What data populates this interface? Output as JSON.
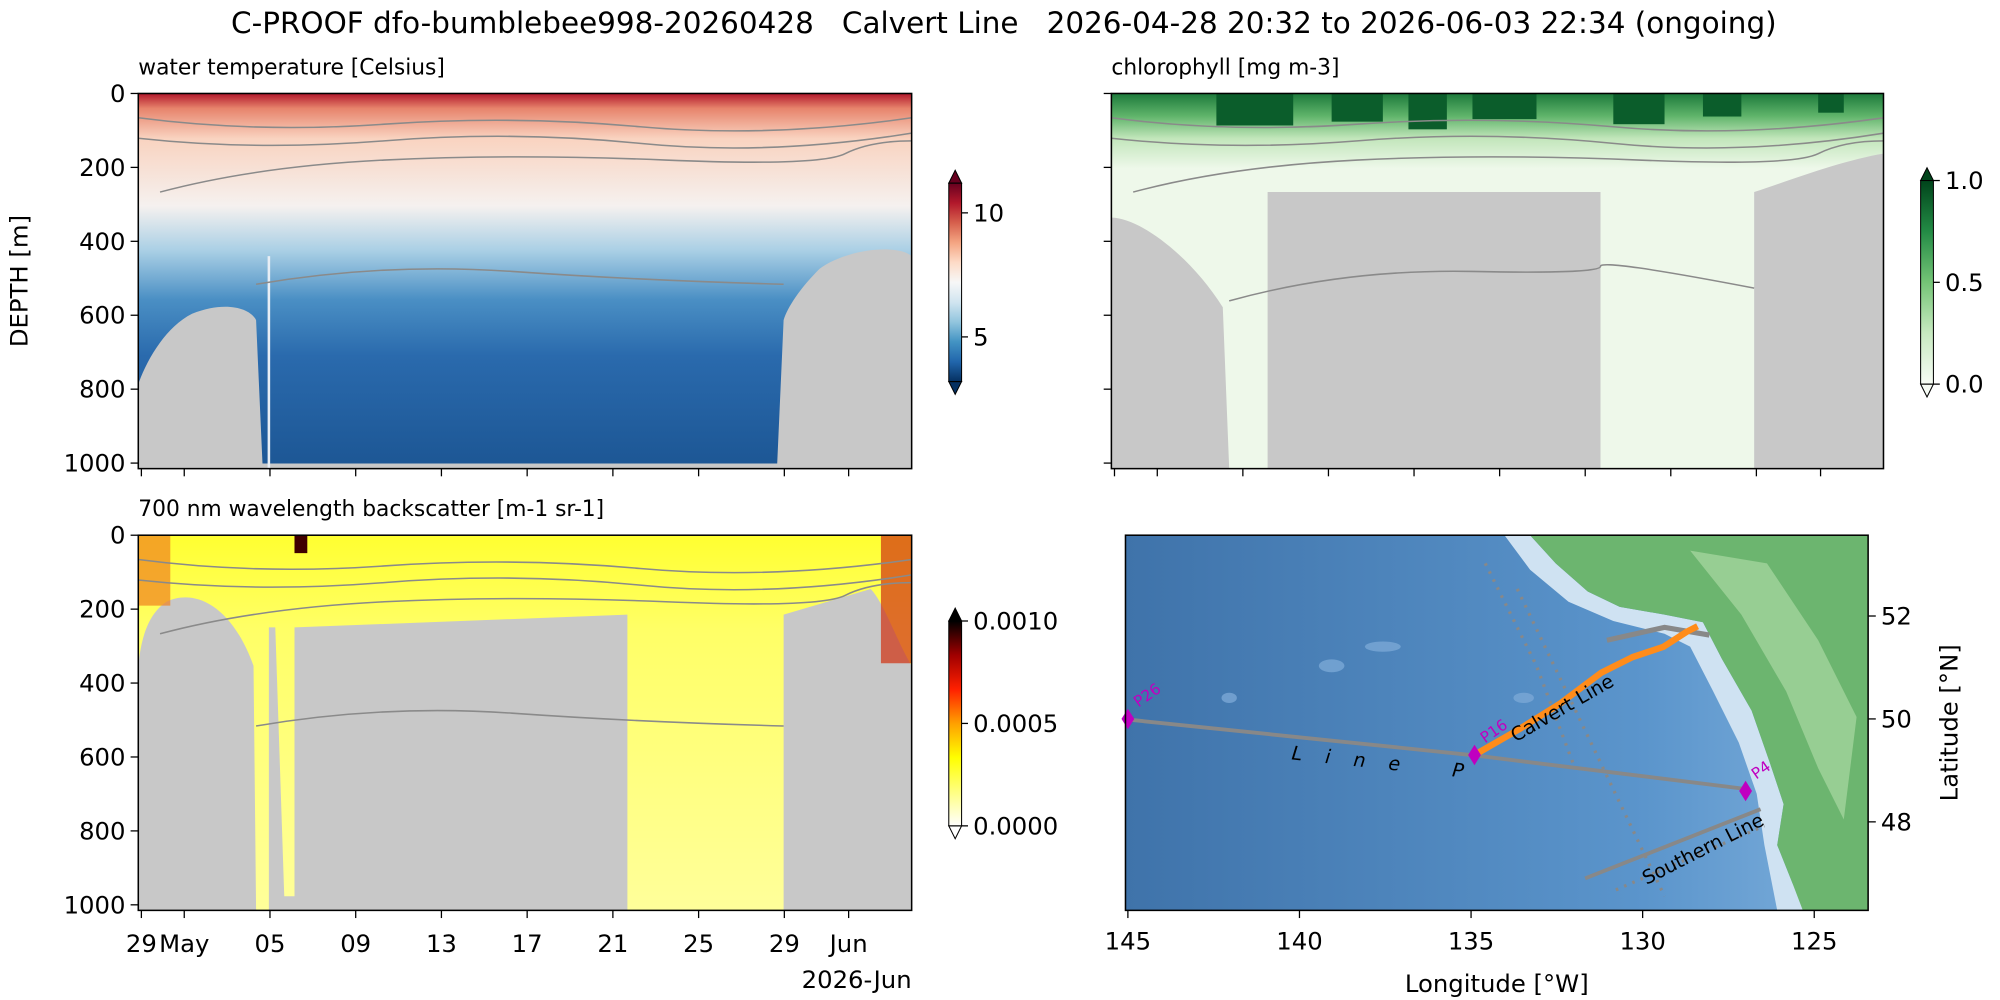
{
  "title": "C-PROOF dfo-bumblebee998-20260428   Calvert Line   2026-04-28 20:32 to 2026-06-03 22:34 (ongoing)",
  "chart_data": [
    {
      "type": "heatmap",
      "title": "water temperature [Celsius]",
      "ylabel": "DEPTH [m]",
      "ylim": [
        0,
        1015
      ],
      "y_inverted": true,
      "yticks": [
        0,
        200,
        400,
        600,
        800,
        1000
      ],
      "show_yticklabels": true,
      "xlim": [
        "2026-04-28T20:32",
        "2026-06-03T22:34"
      ],
      "xticks": [
        "2026-04-29T00:00",
        "2026-05-01T00:00",
        "2026-05-05T00:00",
        "2026-05-09T00:00",
        "2026-05-13T00:00",
        "2026-05-17T00:00",
        "2026-05-21T00:00",
        "2026-05-25T00:00",
        "2026-05-29T00:00",
        "2026-06-01T00:00"
      ],
      "show_xticklabels": false,
      "colorbar": {
        "lim": [
          3.2,
          11.2
        ],
        "ticks": [
          5,
          10
        ],
        "extend": "both",
        "cmap": [
          "#053061",
          "#2166ac",
          "#4393c3",
          "#92c5de",
          "#d1e5f0",
          "#f7f7f7",
          "#fddbc7",
          "#f4a582",
          "#d6604d",
          "#b2182b",
          "#67001f"
        ]
      }
    },
    {
      "type": "heatmap",
      "title": "chlorophyll [mg m-3]",
      "ylim": [
        0,
        1015
      ],
      "y_inverted": true,
      "yticks": [
        0,
        200,
        400,
        600,
        800,
        1000
      ],
      "show_yticklabels": false,
      "xlim": [
        "2026-04-28T20:32",
        "2026-06-03T22:34"
      ],
      "xticks": [
        "2026-04-29T00:00",
        "2026-05-01T00:00",
        "2026-05-05T00:00",
        "2026-05-09T00:00",
        "2026-05-13T00:00",
        "2026-05-17T00:00",
        "2026-05-21T00:00",
        "2026-05-25T00:00",
        "2026-05-29T00:00",
        "2026-06-01T00:00"
      ],
      "show_xticklabels": false,
      "colorbar": {
        "lim": [
          0,
          1
        ],
        "ticks": [
          {
            "value": 0,
            "label": "0.0"
          },
          {
            "value": 0.5,
            "label": "0.5"
          },
          {
            "value": 1,
            "label": "1.0"
          }
        ],
        "extend": "both",
        "cmap": [
          "#f7fcf5",
          "#c7e9c0",
          "#74c476",
          "#238b45",
          "#00441b"
        ]
      }
    },
    {
      "type": "heatmap",
      "title": "700 nm wavelength backscatter [m-1 sr-1]",
      "ylim": [
        0,
        1015
      ],
      "y_inverted": true,
      "yticks": [
        0,
        200,
        400,
        600,
        800,
        1000
      ],
      "show_yticklabels": true,
      "xlim": [
        "2026-04-28T20:32",
        "2026-06-03T22:34"
      ],
      "xticks": [
        {
          "value": "2026-04-29T00:00",
          "label": "29"
        },
        {
          "value": "2026-05-01T00:00",
          "label": "May"
        },
        {
          "value": "2026-05-05T00:00",
          "label": "05"
        },
        {
          "value": "2026-05-09T00:00",
          "label": "09"
        },
        {
          "value": "2026-05-13T00:00",
          "label": "13"
        },
        {
          "value": "2026-05-17T00:00",
          "label": "17"
        },
        {
          "value": "2026-05-21T00:00",
          "label": "21"
        },
        {
          "value": "2026-05-25T00:00",
          "label": "25"
        },
        {
          "value": "2026-05-29T00:00",
          "label": "29"
        },
        {
          "value": "2026-06-01T00:00",
          "label": "Jun"
        }
      ],
      "show_xticklabels": true,
      "x_offset_label": "2026-Jun",
      "colorbar": {
        "lim": [
          0,
          0.001
        ],
        "ticks": [
          {
            "value": 0,
            "label": "0.0000"
          },
          {
            "value": 0.0005,
            "label": "0.0005"
          },
          {
            "value": 0.001,
            "label": "0.0010"
          }
        ],
        "extend": "both",
        "cmap": [
          "#ffffff",
          "#ffff80",
          "#ffff00",
          "#ffa000",
          "#ff2000",
          "#a00000",
          "#000000"
        ]
      }
    },
    {
      "type": "map",
      "xlabel": "Longitude [°W]",
      "ylabel": "Latitude [°N]",
      "xlim": [
        -145.07,
        -123.43
      ],
      "ylim": [
        46.28,
        53.57
      ],
      "xticks": [
        {
          "value": -145,
          "label": "145"
        },
        {
          "value": -140,
          "label": "140"
        },
        {
          "value": -135,
          "label": "135"
        },
        {
          "value": -130,
          "label": "130"
        },
        {
          "value": -125,
          "label": "125"
        }
      ],
      "yticks": [
        48,
        50,
        52
      ],
      "stations": {
        "names": [
          "P26",
          "P16",
          "P4"
        ],
        "lon": [
          -145.0,
          -134.9,
          -127.0
        ],
        "lat": [
          50.0,
          49.3,
          48.6
        ],
        "color": "#c000c0"
      },
      "track": {
        "color": "#ff8c1a",
        "lon": [
          -134.9,
          -133.6,
          -132.4,
          -131.2,
          -130.3,
          -129.4,
          -128.7,
          -128.4
        ],
        "lat": [
          49.3,
          49.8,
          50.3,
          50.9,
          51.2,
          51.4,
          51.7,
          51.8
        ]
      },
      "annotations": [
        "Line P",
        "Calvert Line",
        "Southern Line"
      ]
    }
  ]
}
